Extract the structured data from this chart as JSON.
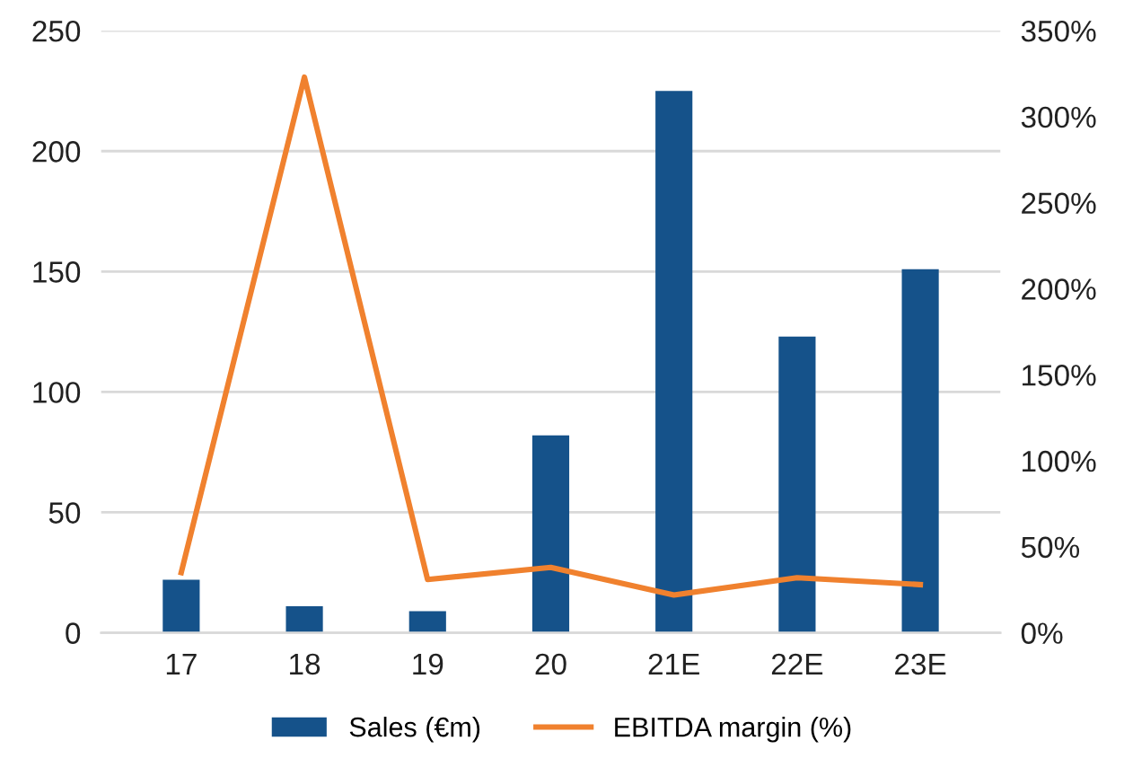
{
  "chart_data": {
    "type": "bar",
    "categories": [
      "17",
      "18",
      "19",
      "20",
      "21E",
      "22E",
      "23E"
    ],
    "series": [
      {
        "name": "Sales (€m)",
        "color": "#15528a",
        "values": [
          22,
          11,
          9,
          82,
          225,
          123,
          151
        ]
      },
      {
        "name": "EBITDA margin (%)",
        "type": "line",
        "axis": "y2",
        "color": "#f0812e",
        "marker": "none",
        "line_style": "solid",
        "values": [
          35,
          323,
          31,
          38,
          22,
          32,
          28
        ]
      }
    ],
    "ylim": [
      0,
      250
    ],
    "yticks": [
      0,
      50,
      100,
      150,
      200,
      250
    ],
    "y2lim": [
      0,
      350
    ],
    "y2ticks": [
      {
        "value": 0,
        "label": "0%"
      },
      {
        "value": 50,
        "label": "50%"
      },
      {
        "value": 100,
        "label": "100%"
      },
      {
        "value": 150,
        "label": "150%"
      },
      {
        "value": 200,
        "label": "200%"
      },
      {
        "value": 250,
        "label": "250%"
      },
      {
        "value": 300,
        "label": "300%"
      },
      {
        "value": 350,
        "label": "350%"
      }
    ],
    "grid": "y",
    "legend": "bottom"
  }
}
